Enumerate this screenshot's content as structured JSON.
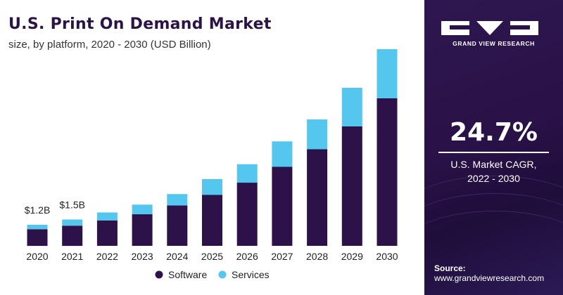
{
  "chart_data": {
    "type": "bar",
    "stacked": true,
    "title": "U.S. Print On Demand Market",
    "subtitle": "size, by platform, 2020 - 2030 (USD Billion)",
    "categories": [
      "2020",
      "2021",
      "2022",
      "2023",
      "2024",
      "2025",
      "2026",
      "2027",
      "2028",
      "2029",
      "2030"
    ],
    "series": [
      {
        "name": "Software",
        "color": "#2c1249",
        "values": [
          0.95,
          1.15,
          1.45,
          1.8,
          2.3,
          2.9,
          3.6,
          4.5,
          5.5,
          6.8,
          8.4
        ]
      },
      {
        "name": "Services",
        "color": "#55c7ee",
        "values": [
          0.25,
          0.35,
          0.45,
          0.55,
          0.65,
          0.9,
          1.05,
          1.45,
          1.7,
          2.2,
          2.8
        ]
      }
    ],
    "annotations": [
      {
        "category": "2020",
        "text": "$1.2B"
      },
      {
        "category": "2021",
        "text": "$1.5B"
      }
    ],
    "ylim": [
      0,
      11.4
    ],
    "grid": false,
    "legend": "bottom"
  },
  "side_panel": {
    "logo_text": "GRAND VIEW RESEARCH",
    "cagr_value": "24.7%",
    "cagr_line1": "U.S. Market CAGR,",
    "cagr_line2": "2022 - 2030",
    "source_label": "Source:",
    "source_url": "www.grandviewresearch.com",
    "colors": {
      "background": "#2a1248",
      "text": "#ffffff"
    }
  }
}
